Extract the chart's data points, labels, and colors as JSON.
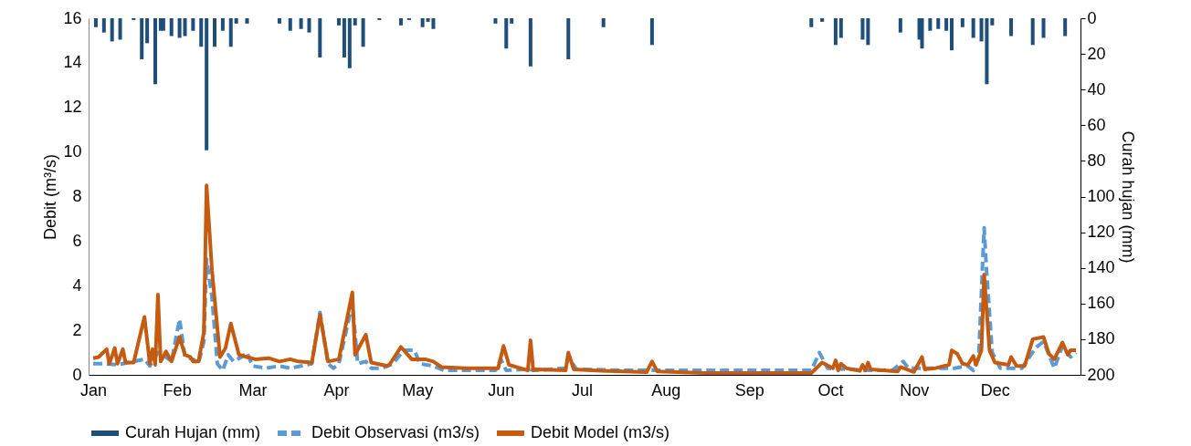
{
  "chart_data": {
    "type": "line",
    "ylabel": "Debit (m³/s)",
    "y2label": "Curah hujan (mm)",
    "xlim": [
      "--01-01",
      "--12-31"
    ],
    "xticks": [
      {
        "value": "--01-01",
        "label": "Jan"
      },
      {
        "value": "--02-01",
        "label": "Feb"
      },
      {
        "value": "--03-01",
        "label": "Mar"
      },
      {
        "value": "--04-01",
        "label": "Apr"
      },
      {
        "value": "--05-01",
        "label": "May"
      },
      {
        "value": "--06-01",
        "label": "Jun"
      },
      {
        "value": "--07-01",
        "label": "Jul"
      },
      {
        "value": "--08-01",
        "label": "Aug"
      },
      {
        "value": "--09-01",
        "label": "Sep"
      },
      {
        "value": "--10-01",
        "label": "Oct"
      },
      {
        "value": "--11-01",
        "label": "Nov"
      },
      {
        "value": "--12-01",
        "label": "Dec"
      }
    ],
    "ylim": [
      0,
      16
    ],
    "yticks": [
      0,
      2,
      4,
      6,
      8,
      10,
      12,
      14,
      16
    ],
    "y2lim": [
      200,
      0
    ],
    "y2ticks": [
      0,
      20,
      40,
      60,
      80,
      100,
      120,
      140,
      160,
      180,
      200
    ],
    "legend": "bottom",
    "series": [
      {
        "name": "Curah Hujan (mm)",
        "type": "bar",
        "axis": "y2",
        "color": "#1f4e79",
        "x": [
          "--01-02",
          "--01-05",
          "--01-08",
          "--01-11",
          "--01-16",
          "--01-19",
          "--01-21",
          "--01-24",
          "--01-26",
          "--01-27",
          "--01-30",
          "--02-02",
          "--02-04",
          "--02-07",
          "--02-10",
          "--02-12",
          "--02-15",
          "--02-18",
          "--02-21",
          "--02-23",
          "--02-27",
          "--03-11",
          "--03-15",
          "--03-19",
          "--03-22",
          "--03-26",
          "--04-02",
          "--04-04",
          "--04-06",
          "--04-08",
          "--04-11",
          "--04-17",
          "--04-25",
          "--04-28",
          "--05-03",
          "--05-05",
          "--05-07",
          "--05-30",
          "--06-03",
          "--06-05",
          "--06-12",
          "--06-26",
          "--07-09",
          "--07-27",
          "--09-24",
          "--09-28",
          "--10-03",
          "--10-05",
          "--10-13",
          "--10-15",
          "--10-27",
          "--11-03",
          "--11-04",
          "--11-07",
          "--11-10",
          "--11-13",
          "--11-15",
          "--11-19",
          "--11-23",
          "--11-26",
          "--11-28",
          "--11-30",
          "--12-07",
          "--12-15",
          "--12-19",
          "--12-27"
        ],
        "values": [
          5,
          8,
          13,
          12,
          1,
          23,
          14,
          37,
          7,
          7,
          10,
          11,
          10,
          7,
          16,
          74,
          16,
          7,
          16,
          3,
          3,
          3,
          7,
          6,
          8,
          22,
          4,
          22,
          28,
          4,
          16,
          1,
          4,
          1,
          5,
          2,
          6,
          3,
          17,
          3,
          27,
          23,
          5,
          15,
          5,
          2,
          15,
          11,
          12,
          15,
          8,
          12,
          17,
          7,
          6,
          7,
          18,
          5,
          11,
          13,
          37,
          4,
          10,
          15,
          11,
          10
        ]
      },
      {
        "name": "Debit Observasi (m3/s)",
        "line_style": "dashed",
        "color": "#5b9bd5",
        "x": [
          "--01-01",
          "--01-05",
          "--01-10",
          "--01-16",
          "--01-20",
          "--01-22",
          "--01-25",
          "--01-28",
          "--01-30",
          "--02-02",
          "--02-04",
          "--02-07",
          "--02-09",
          "--02-11",
          "--02-12",
          "--02-14",
          "--02-16",
          "--02-18",
          "--02-20",
          "--02-22",
          "--02-25",
          "--02-27",
          "--03-01",
          "--03-06",
          "--03-11",
          "--03-15",
          "--03-19",
          "--03-23",
          "--03-26",
          "--03-29",
          "--03-31",
          "--04-02",
          "--04-07",
          "--04-09",
          "--04-12",
          "--04-14",
          "--04-18",
          "--04-22",
          "--04-26",
          "--04-30",
          "--05-02",
          "--05-07",
          "--05-11",
          "--05-20",
          "--05-30",
          "--06-01",
          "--06-03",
          "--06-11",
          "--06-14",
          "--06-25",
          "--06-26",
          "--06-29",
          "--07-19",
          "--08-28",
          "--09-24",
          "--09-27",
          "--09-30",
          "--10-07",
          "--10-17",
          "--10-24",
          "--10-28",
          "--10-30",
          "--11-16",
          "--11-21",
          "--11-23",
          "--11-25",
          "--11-27",
          "--11-28",
          "--11-30",
          "--12-03",
          "--12-11",
          "--12-16",
          "--12-19",
          "--12-23",
          "--12-26",
          "--12-29",
          "--12-31"
        ],
        "values": [
          0.5,
          0.5,
          0.45,
          0.6,
          0.7,
          0.4,
          1.0,
          0.8,
          0.6,
          2.5,
          0.8,
          0.7,
          0.5,
          1.5,
          5.2,
          3.5,
          0.5,
          0.2,
          0.9,
          0.6,
          0.8,
          1.0,
          0.4,
          0.3,
          0.4,
          0.3,
          0.4,
          0.5,
          2.8,
          0.5,
          0.3,
          0.5,
          3.2,
          0.5,
          0.6,
          0.3,
          0.3,
          0.5,
          1.1,
          1.1,
          0.5,
          0.4,
          0.2,
          0.2,
          0.2,
          0.7,
          0.2,
          0.25,
          0.2,
          0.3,
          0.8,
          0.25,
          0.2,
          0.2,
          0.2,
          1.0,
          0.3,
          0.25,
          0.2,
          0.2,
          0.6,
          0.3,
          0.3,
          0.4,
          0.2,
          0.8,
          6.6,
          4.5,
          1.0,
          0.3,
          0.3,
          1.2,
          1.5,
          0.3,
          1.3,
          0.8,
          1.0
        ]
      },
      {
        "name": "Debit Model (m3/s)",
        "line_style": "solid",
        "color": "#c55a11",
        "x": [
          "--01-01",
          "--01-03",
          "--01-06",
          "--01-07",
          "--01-09",
          "--01-10",
          "--01-12",
          "--01-13",
          "--01-16",
          "--01-20",
          "--01-22",
          "--01-23",
          "--01-24",
          "--01-25",
          "--01-26",
          "--01-28",
          "--01-30",
          "--02-02",
          "--02-04",
          "--02-06",
          "--02-07",
          "--02-09",
          "--02-11",
          "--02-12",
          "--02-14",
          "--02-17",
          "--02-19",
          "--02-21",
          "--02-24",
          "--02-27",
          "--03-02",
          "--03-07",
          "--03-11",
          "--03-15",
          "--03-18",
          "--03-23",
          "--03-26",
          "--03-29",
          "--04-02",
          "--04-07",
          "--04-08",
          "--04-12",
          "--04-14",
          "--04-20",
          "--04-21",
          "--04-25",
          "--04-29",
          "--05-04",
          "--05-07",
          "--05-10",
          "--05-19",
          "--05-31",
          "--06-02",
          "--06-04",
          "--06-11",
          "--06-12",
          "--06-13",
          "--06-14",
          "--06-25",
          "--06-26",
          "--06-28",
          "--07-08",
          "--07-25",
          "--07-27",
          "--07-29",
          "--08-16",
          "--09-24",
          "--09-28",
          "--10-02",
          "--10-03",
          "--10-04",
          "--10-05",
          "--10-07",
          "--10-12",
          "--10-13",
          "--10-14",
          "--10-15",
          "--10-16",
          "--10-26",
          "--10-27",
          "--11-01",
          "--11-04",
          "--11-05",
          "--11-09",
          "--11-14",
          "--11-15",
          "--11-17",
          "--11-19",
          "--11-21",
          "--11-23",
          "--11-24",
          "--11-26",
          "--11-27",
          "--11-29",
          "--12-01",
          "--12-06",
          "--12-07",
          "--12-09",
          "--12-12",
          "--12-15",
          "--12-19",
          "--12-21",
          "--12-23",
          "--12-26",
          "--12-28",
          "--12-29",
          "--12-31"
        ],
        "values": [
          0.75,
          0.8,
          1.15,
          0.5,
          1.2,
          0.5,
          1.15,
          0.55,
          0.55,
          2.6,
          0.5,
          1.15,
          0.45,
          3.6,
          0.6,
          1.05,
          0.6,
          1.7,
          0.9,
          0.8,
          0.6,
          0.6,
          1.9,
          8.5,
          4.7,
          0.8,
          1.2,
          2.3,
          0.9,
          0.8,
          0.7,
          0.75,
          0.6,
          0.7,
          0.6,
          0.55,
          2.7,
          0.6,
          0.7,
          3.7,
          0.9,
          1.8,
          0.55,
          0.4,
          0.5,
          1.25,
          0.7,
          0.7,
          0.6,
          0.35,
          0.3,
          0.3,
          1.3,
          0.45,
          0.2,
          1.55,
          0.2,
          0.25,
          0.2,
          1.0,
          0.25,
          0.18,
          0.12,
          0.6,
          0.15,
          0.08,
          0.08,
          0.55,
          0.3,
          0.65,
          0.2,
          0.5,
          0.3,
          0.18,
          0.45,
          0.2,
          0.55,
          0.25,
          0.15,
          0.35,
          0.13,
          0.8,
          0.25,
          0.3,
          0.45,
          1.1,
          0.95,
          0.5,
          0.45,
          0.85,
          0.45,
          1.1,
          4.5,
          1.1,
          0.55,
          0.45,
          0.8,
          0.4,
          0.4,
          1.6,
          1.7,
          0.95,
          0.7,
          1.45,
          0.9,
          1.1,
          1.1
        ]
      }
    ]
  }
}
